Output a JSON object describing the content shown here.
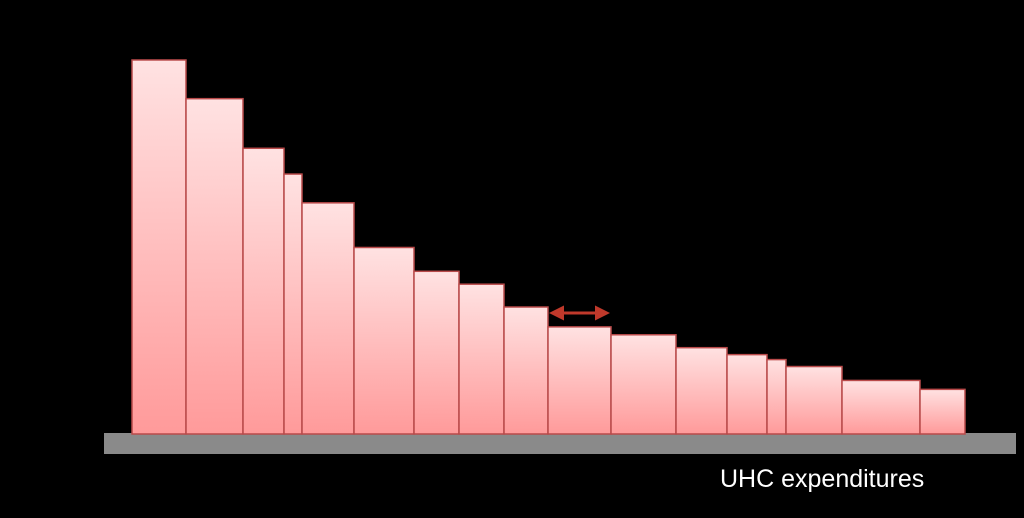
{
  "chart_data": {
    "type": "bar",
    "title": "",
    "xlabel": "UHC expenditures",
    "ylabel": "",
    "ylim": [
      0,
      380
    ],
    "grid": false,
    "legend": "none",
    "colors": {
      "background": "#000000",
      "bar_fill_top": "#ffe2e2",
      "bar_fill_bottom": "#ff9a9a",
      "bar_stroke": "#b94a4a",
      "baseline": "#8a8a8a",
      "arrow": "#c0392b",
      "axis_label": "#ffffff"
    },
    "bars": [
      {
        "width": 54,
        "value": 377
      },
      {
        "width": 57,
        "value": 338
      },
      {
        "width": 41,
        "value": 288
      },
      {
        "width": 18,
        "value": 262
      },
      {
        "width": 52,
        "value": 233
      },
      {
        "width": 60,
        "value": 188
      },
      {
        "width": 45,
        "value": 164
      },
      {
        "width": 45,
        "value": 151
      },
      {
        "width": 44,
        "value": 128
      },
      {
        "width": 63,
        "value": 108
      },
      {
        "width": 65,
        "value": 100
      },
      {
        "width": 51,
        "value": 87
      },
      {
        "width": 40,
        "value": 80
      },
      {
        "width": 19,
        "value": 75
      },
      {
        "width": 56,
        "value": 68
      },
      {
        "width": 78,
        "value": 54
      },
      {
        "width": 45,
        "value": 45
      }
    ],
    "annotation": {
      "type": "double-arrow",
      "bar_index": 9,
      "value": 122
    }
  }
}
